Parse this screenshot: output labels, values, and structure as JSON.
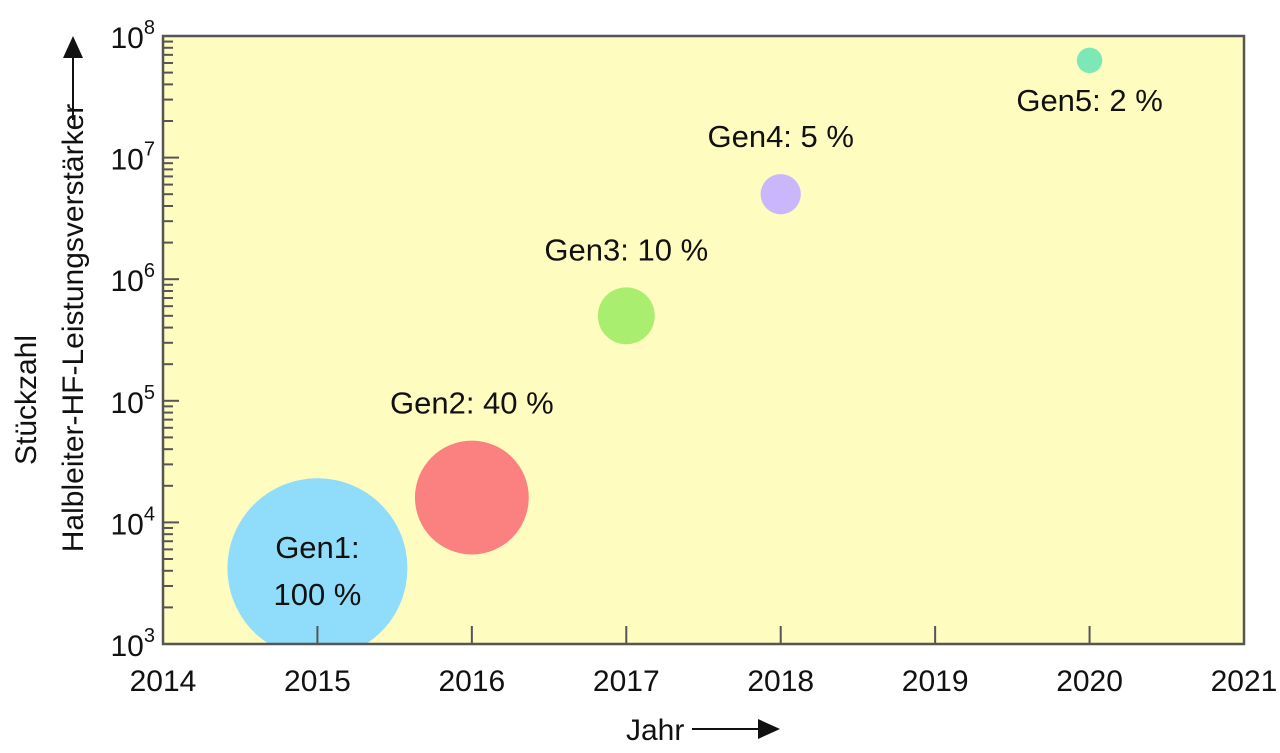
{
  "chart_data": {
    "type": "scatter",
    "subtype": "bubble",
    "title": "",
    "xlabel": "Jahr",
    "ylabel_line1": "Stückzahl",
    "ylabel_line2": "Halbleiter-HF-Leistungsverstärker",
    "xlim": [
      2014,
      2021
    ],
    "ylim": [
      1000,
      100000000
    ],
    "yscale": "log",
    "x_ticks": [
      "2014",
      "2015",
      "2016",
      "2017",
      "2018",
      "2019",
      "2020",
      "2021"
    ],
    "y_ticks": [
      {
        "base": "10",
        "exp": "3"
      },
      {
        "base": "10",
        "exp": "4"
      },
      {
        "base": "10",
        "exp": "5"
      },
      {
        "base": "10",
        "exp": "6"
      },
      {
        "base": "10",
        "exp": "7"
      },
      {
        "base": "10",
        "exp": "8"
      }
    ],
    "background_color": "#fffcc0",
    "points": [
      {
        "name": "Gen1",
        "x": 2015,
        "y": 4200,
        "share_percent": 100,
        "label": [
          "Gen1:",
          "100 %"
        ],
        "color": "#8fdcfb",
        "label_pos": "inside"
      },
      {
        "name": "Gen2",
        "x": 2016,
        "y": 16000,
        "share_percent": 40,
        "label": [
          "Gen2: 40 %"
        ],
        "color": "#fb8080",
        "label_pos": "above"
      },
      {
        "name": "Gen3",
        "x": 2017,
        "y": 500000,
        "share_percent": 10,
        "label": [
          "Gen3: 10 %"
        ],
        "color": "#a9ee6e",
        "label_pos": "above"
      },
      {
        "name": "Gen4",
        "x": 2018,
        "y": 5000000,
        "share_percent": 5,
        "label": [
          "Gen4: 5 %"
        ],
        "color": "#c9b6fb",
        "label_pos": "above"
      },
      {
        "name": "Gen5",
        "x": 2020,
        "y": 63000000,
        "share_percent": 2,
        "label": [
          "Gen5: 2 %"
        ],
        "color": "#7de8b6",
        "label_pos": "below"
      }
    ]
  }
}
